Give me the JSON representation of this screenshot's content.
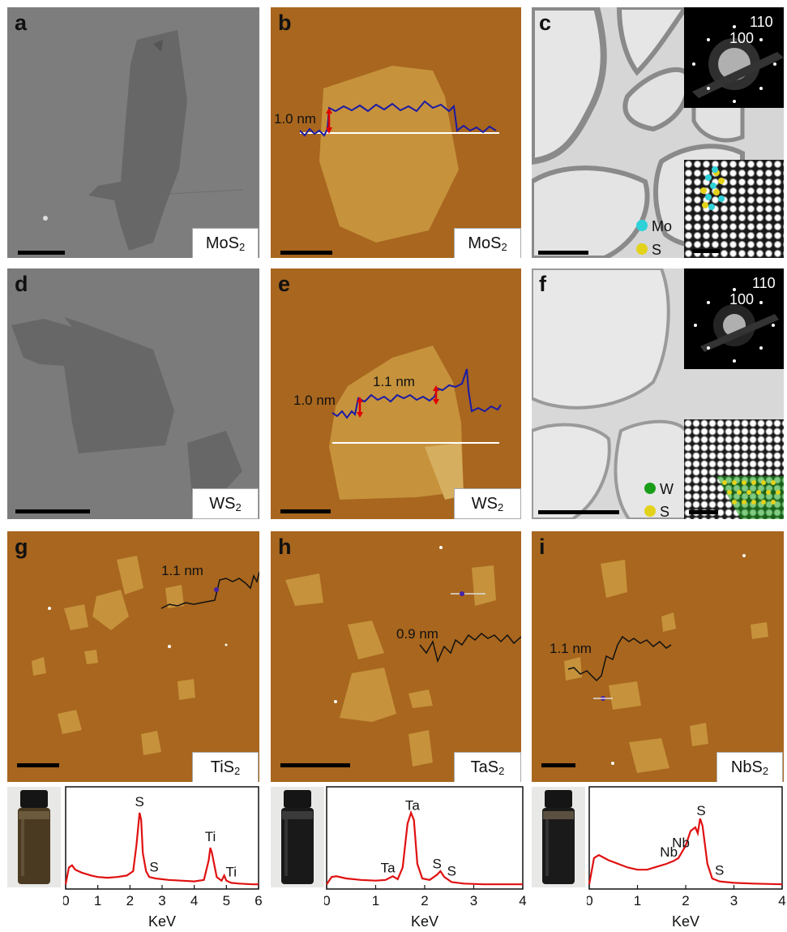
{
  "panels": {
    "a": {
      "label": "a",
      "material": "MoS",
      "material_sub": "2"
    },
    "b": {
      "label": "b",
      "material": "MoS",
      "material_sub": "2",
      "height_label": "1.0 nm"
    },
    "c": {
      "label": "c",
      "saed_labels": [
        "110",
        "100"
      ],
      "legend": [
        {
          "label": "Mo",
          "color": "#2fd1d9"
        },
        {
          "label": "S",
          "color": "#e3d21a"
        }
      ]
    },
    "d": {
      "label": "d",
      "material": "WS",
      "material_sub": "2"
    },
    "e": {
      "label": "e",
      "material": "WS",
      "material_sub": "2",
      "height_labels": [
        "1.0 nm",
        "1.1 nm"
      ]
    },
    "f": {
      "label": "f",
      "saed_labels": [
        "110",
        "100"
      ],
      "legend": [
        {
          "label": "W",
          "color": "#1a9e1a"
        },
        {
          "label": "S",
          "color": "#e3d21a"
        }
      ]
    },
    "g": {
      "label": "g",
      "material": "TiS",
      "material_sub": "2",
      "height_label": "1.1 nm"
    },
    "h": {
      "label": "h",
      "material": "TaS",
      "material_sub": "2",
      "height_label": "0.9 nm"
    },
    "i": {
      "label": "i",
      "material": "NbS",
      "material_sub": "2",
      "height_label": "1.1 nm"
    }
  },
  "colors": {
    "afm_bg": "#a8661e",
    "afm_flake": "#c6923c",
    "sem_bg": "#7c7c7c",
    "sem_flake": "#676767",
    "tem_bg": "#dcdcdc",
    "profile": "#1a1aa6",
    "arrow": "#e00000",
    "spectrum": "#e01010"
  },
  "chart_data": [
    {
      "type": "line",
      "xlabel": "KeV",
      "xlim": [
        0,
        6
      ],
      "xticks": [
        "0",
        "1",
        "2",
        "3",
        "4",
        "5",
        "6"
      ],
      "series": [
        {
          "x": [
            0.0,
            0.1,
            0.2,
            0.3,
            0.5,
            0.8,
            1.0,
            1.3,
            1.6,
            1.9,
            2.1,
            2.2,
            2.3,
            2.35,
            2.4,
            2.5,
            2.6,
            2.8,
            3.2,
            3.6,
            4.0,
            4.3,
            4.45,
            4.5,
            4.55,
            4.7,
            4.85,
            4.93,
            5.0,
            5.15,
            5.4,
            5.8,
            6.0
          ],
          "y": [
            0.02,
            0.25,
            0.28,
            0.22,
            0.18,
            0.14,
            0.12,
            0.11,
            0.12,
            0.14,
            0.2,
            0.55,
            1.0,
            0.9,
            0.45,
            0.2,
            0.12,
            0.1,
            0.08,
            0.07,
            0.06,
            0.08,
            0.35,
            0.52,
            0.45,
            0.12,
            0.07,
            0.14,
            0.07,
            0.04,
            0.03,
            0.02,
            0.02
          ]
        }
      ],
      "annotations": [
        {
          "text": "S",
          "x": 2.3
        },
        {
          "text": "S",
          "x": 2.75
        },
        {
          "text": "Ti",
          "x": 4.5
        },
        {
          "text": "Ti",
          "x": 5.15
        }
      ]
    },
    {
      "type": "line",
      "xlabel": "KeV",
      "xlim": [
        0,
        4
      ],
      "xticks": [
        "0",
        "1",
        "2",
        "3",
        "4"
      ],
      "series": [
        {
          "x": [
            0.0,
            0.1,
            0.2,
            0.4,
            0.7,
            1.0,
            1.2,
            1.35,
            1.45,
            1.55,
            1.65,
            1.72,
            1.78,
            1.85,
            1.95,
            2.1,
            2.25,
            2.32,
            2.4,
            2.55,
            2.8,
            3.2,
            3.6,
            4.0
          ],
          "y": [
            0.02,
            0.12,
            0.13,
            0.1,
            0.08,
            0.07,
            0.08,
            0.13,
            0.09,
            0.25,
            0.85,
            1.0,
            0.9,
            0.3,
            0.1,
            0.08,
            0.15,
            0.2,
            0.12,
            0.05,
            0.03,
            0.02,
            0.02,
            0.02
          ]
        }
      ],
      "annotations": [
        {
          "text": "Ta",
          "x": 1.25
        },
        {
          "text": "Ta",
          "x": 1.75
        },
        {
          "text": "S",
          "x": 2.25
        },
        {
          "text": "S",
          "x": 2.55
        }
      ]
    },
    {
      "type": "line",
      "xlabel": "KeV",
      "xlim": [
        0,
        4
      ],
      "xticks": [
        "0",
        "1",
        "2",
        "3",
        "4"
      ],
      "series": [
        {
          "x": [
            0.0,
            0.1,
            0.2,
            0.4,
            0.6,
            0.8,
            1.0,
            1.2,
            1.4,
            1.6,
            1.75,
            1.85,
            2.0,
            2.1,
            2.2,
            2.25,
            2.3,
            2.35,
            2.45,
            2.55,
            2.7,
            3.0,
            3.4,
            4.0
          ],
          "y": [
            0.02,
            0.38,
            0.42,
            0.35,
            0.3,
            0.25,
            0.22,
            0.22,
            0.26,
            0.3,
            0.34,
            0.38,
            0.55,
            0.75,
            0.8,
            0.72,
            0.92,
            0.82,
            0.3,
            0.1,
            0.06,
            0.04,
            0.03,
            0.02
          ]
        }
      ],
      "annotations": [
        {
          "text": "Nb",
          "x": 1.65
        },
        {
          "text": "Nb",
          "x": 1.9
        },
        {
          "text": "S",
          "x": 2.32
        },
        {
          "text": "S",
          "x": 2.7
        }
      ]
    }
  ]
}
